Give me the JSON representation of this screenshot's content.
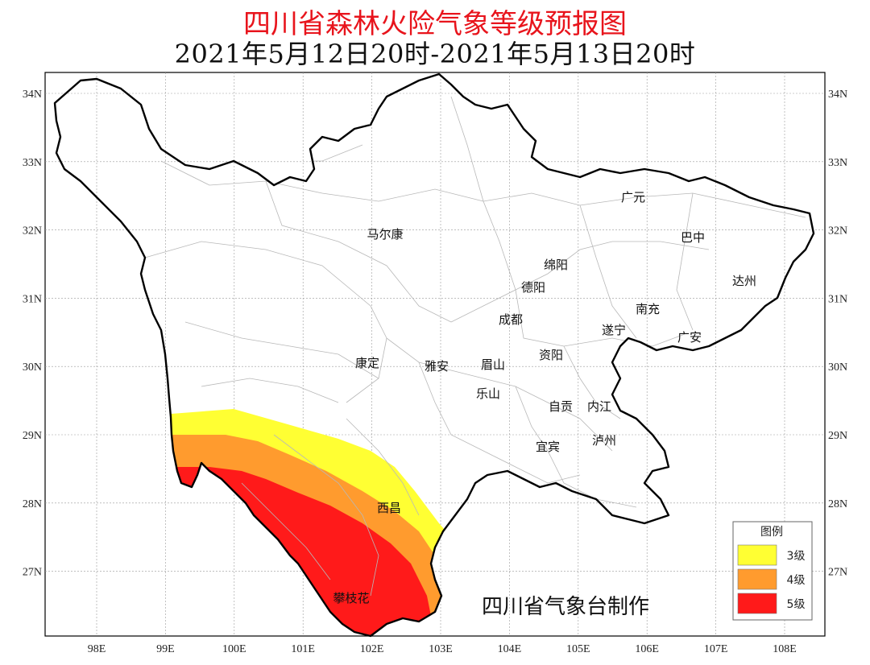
{
  "title": "四川省森林火险气象等级预报图",
  "subtitle": "2021年5月12日20时-2021年5月13日20时",
  "axes": {
    "lon_ticks": [
      "98E",
      "99E",
      "100E",
      "101E",
      "102E",
      "103E",
      "104E",
      "105E",
      "106E",
      "107E",
      "108E"
    ],
    "lat_ticks": [
      "34N",
      "33N",
      "32N",
      "31N",
      "30N",
      "29N",
      "28N",
      "27N"
    ]
  },
  "cities": [
    {
      "name": "广元"
    },
    {
      "name": "巴中"
    },
    {
      "name": "马尔康"
    },
    {
      "name": "绵阳"
    },
    {
      "name": "达州"
    },
    {
      "name": "德阳"
    },
    {
      "name": "南充"
    },
    {
      "name": "成都"
    },
    {
      "name": "遂宁"
    },
    {
      "name": "广安"
    },
    {
      "name": "康定"
    },
    {
      "name": "雅安"
    },
    {
      "name": "眉山"
    },
    {
      "name": "资阳"
    },
    {
      "name": "乐山"
    },
    {
      "name": "自贡"
    },
    {
      "name": "内江"
    },
    {
      "name": "宜宾"
    },
    {
      "name": "泸州"
    },
    {
      "name": "西昌"
    },
    {
      "name": "攀枝花"
    }
  ],
  "legend": {
    "title": "图例",
    "items": [
      {
        "label": "3级",
        "color": "#ffff33"
      },
      {
        "label": "4级",
        "color": "#ff9b2e"
      },
      {
        "label": "5级",
        "color": "#ff1a1a"
      }
    ]
  },
  "credit": "四川省气象台制作"
}
